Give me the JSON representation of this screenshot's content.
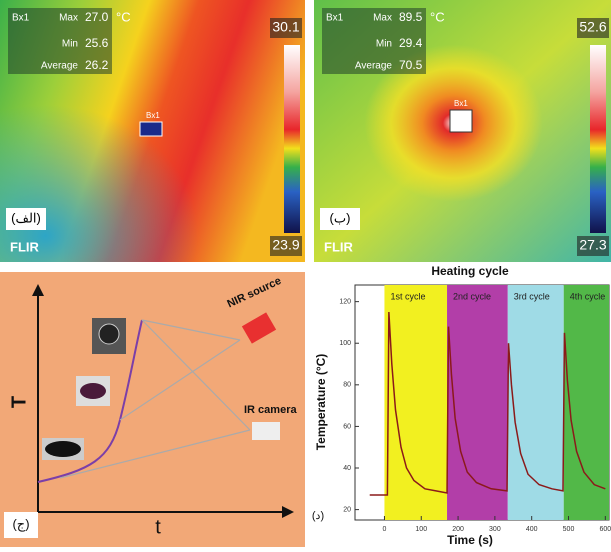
{
  "panels": [
    {
      "label": "(الف)",
      "box": {
        "name": "Bx1",
        "max_label": "Max",
        "max": "27.0",
        "min_label": "Min",
        "min": "25.6",
        "avg_label": "Average",
        "avg": "26.2"
      },
      "unit": "°C",
      "scale_max": "30.1",
      "scale_min": "23.9",
      "brand": "FLIR",
      "marker": "Bx1"
    },
    {
      "label": "(ب)",
      "box": {
        "name": "Bx1",
        "max_label": "Max",
        "max": "89.5",
        "min_label": "Min",
        "min": "29.4",
        "avg_label": "Average",
        "avg": "70.5"
      },
      "unit": "°C",
      "scale_max": "52.6",
      "scale_min": "27.3",
      "brand": "FLIR",
      "marker": "Bx1"
    }
  ],
  "schematic": {
    "label": "(ج)",
    "y_axis": "T",
    "x_axis": "t",
    "source": "NIR source",
    "camera": "IR camera"
  },
  "chart_data": {
    "type": "line",
    "title": "Heating cycle",
    "xlabel": "Time (s)",
    "ylabel": "Temperature (°C)",
    "panel_label": "(د)",
    "cycles": [
      {
        "label": "1st cycle",
        "color": "#f2f020",
        "start": 0,
        "end": 170
      },
      {
        "label": "2nd cycle",
        "color": "#b23ea8",
        "start": 170,
        "end": 335
      },
      {
        "label": "3rd cycle",
        "color": "#9fdbe6",
        "start": 335,
        "end": 487
      },
      {
        "label": "4th cycle",
        "color": "#52b848",
        "start": 487,
        "end": 610
      }
    ],
    "x": [
      -40,
      -10,
      8,
      12,
      20,
      30,
      45,
      60,
      80,
      110,
      140,
      170,
      174,
      182,
      192,
      207,
      225,
      250,
      290,
      333,
      337,
      345,
      355,
      370,
      390,
      420,
      455,
      485,
      489,
      497,
      507,
      522,
      542,
      570,
      600
    ],
    "values": [
      27,
      27,
      27,
      115,
      90,
      68,
      50,
      40,
      34,
      30,
      29,
      28,
      108,
      85,
      64,
      48,
      38,
      33,
      30,
      29,
      100,
      80,
      62,
      47,
      37,
      32,
      30,
      29,
      105,
      82,
      63,
      48,
      38,
      32,
      30
    ],
    "color": "#8b1a1a",
    "xlim": [
      -80,
      610
    ],
    "xticks": [
      0,
      100,
      200,
      300,
      400,
      500,
      600
    ],
    "ylim": [
      15,
      128
    ],
    "yticks": [
      20,
      40,
      60,
      80,
      100,
      120
    ]
  }
}
